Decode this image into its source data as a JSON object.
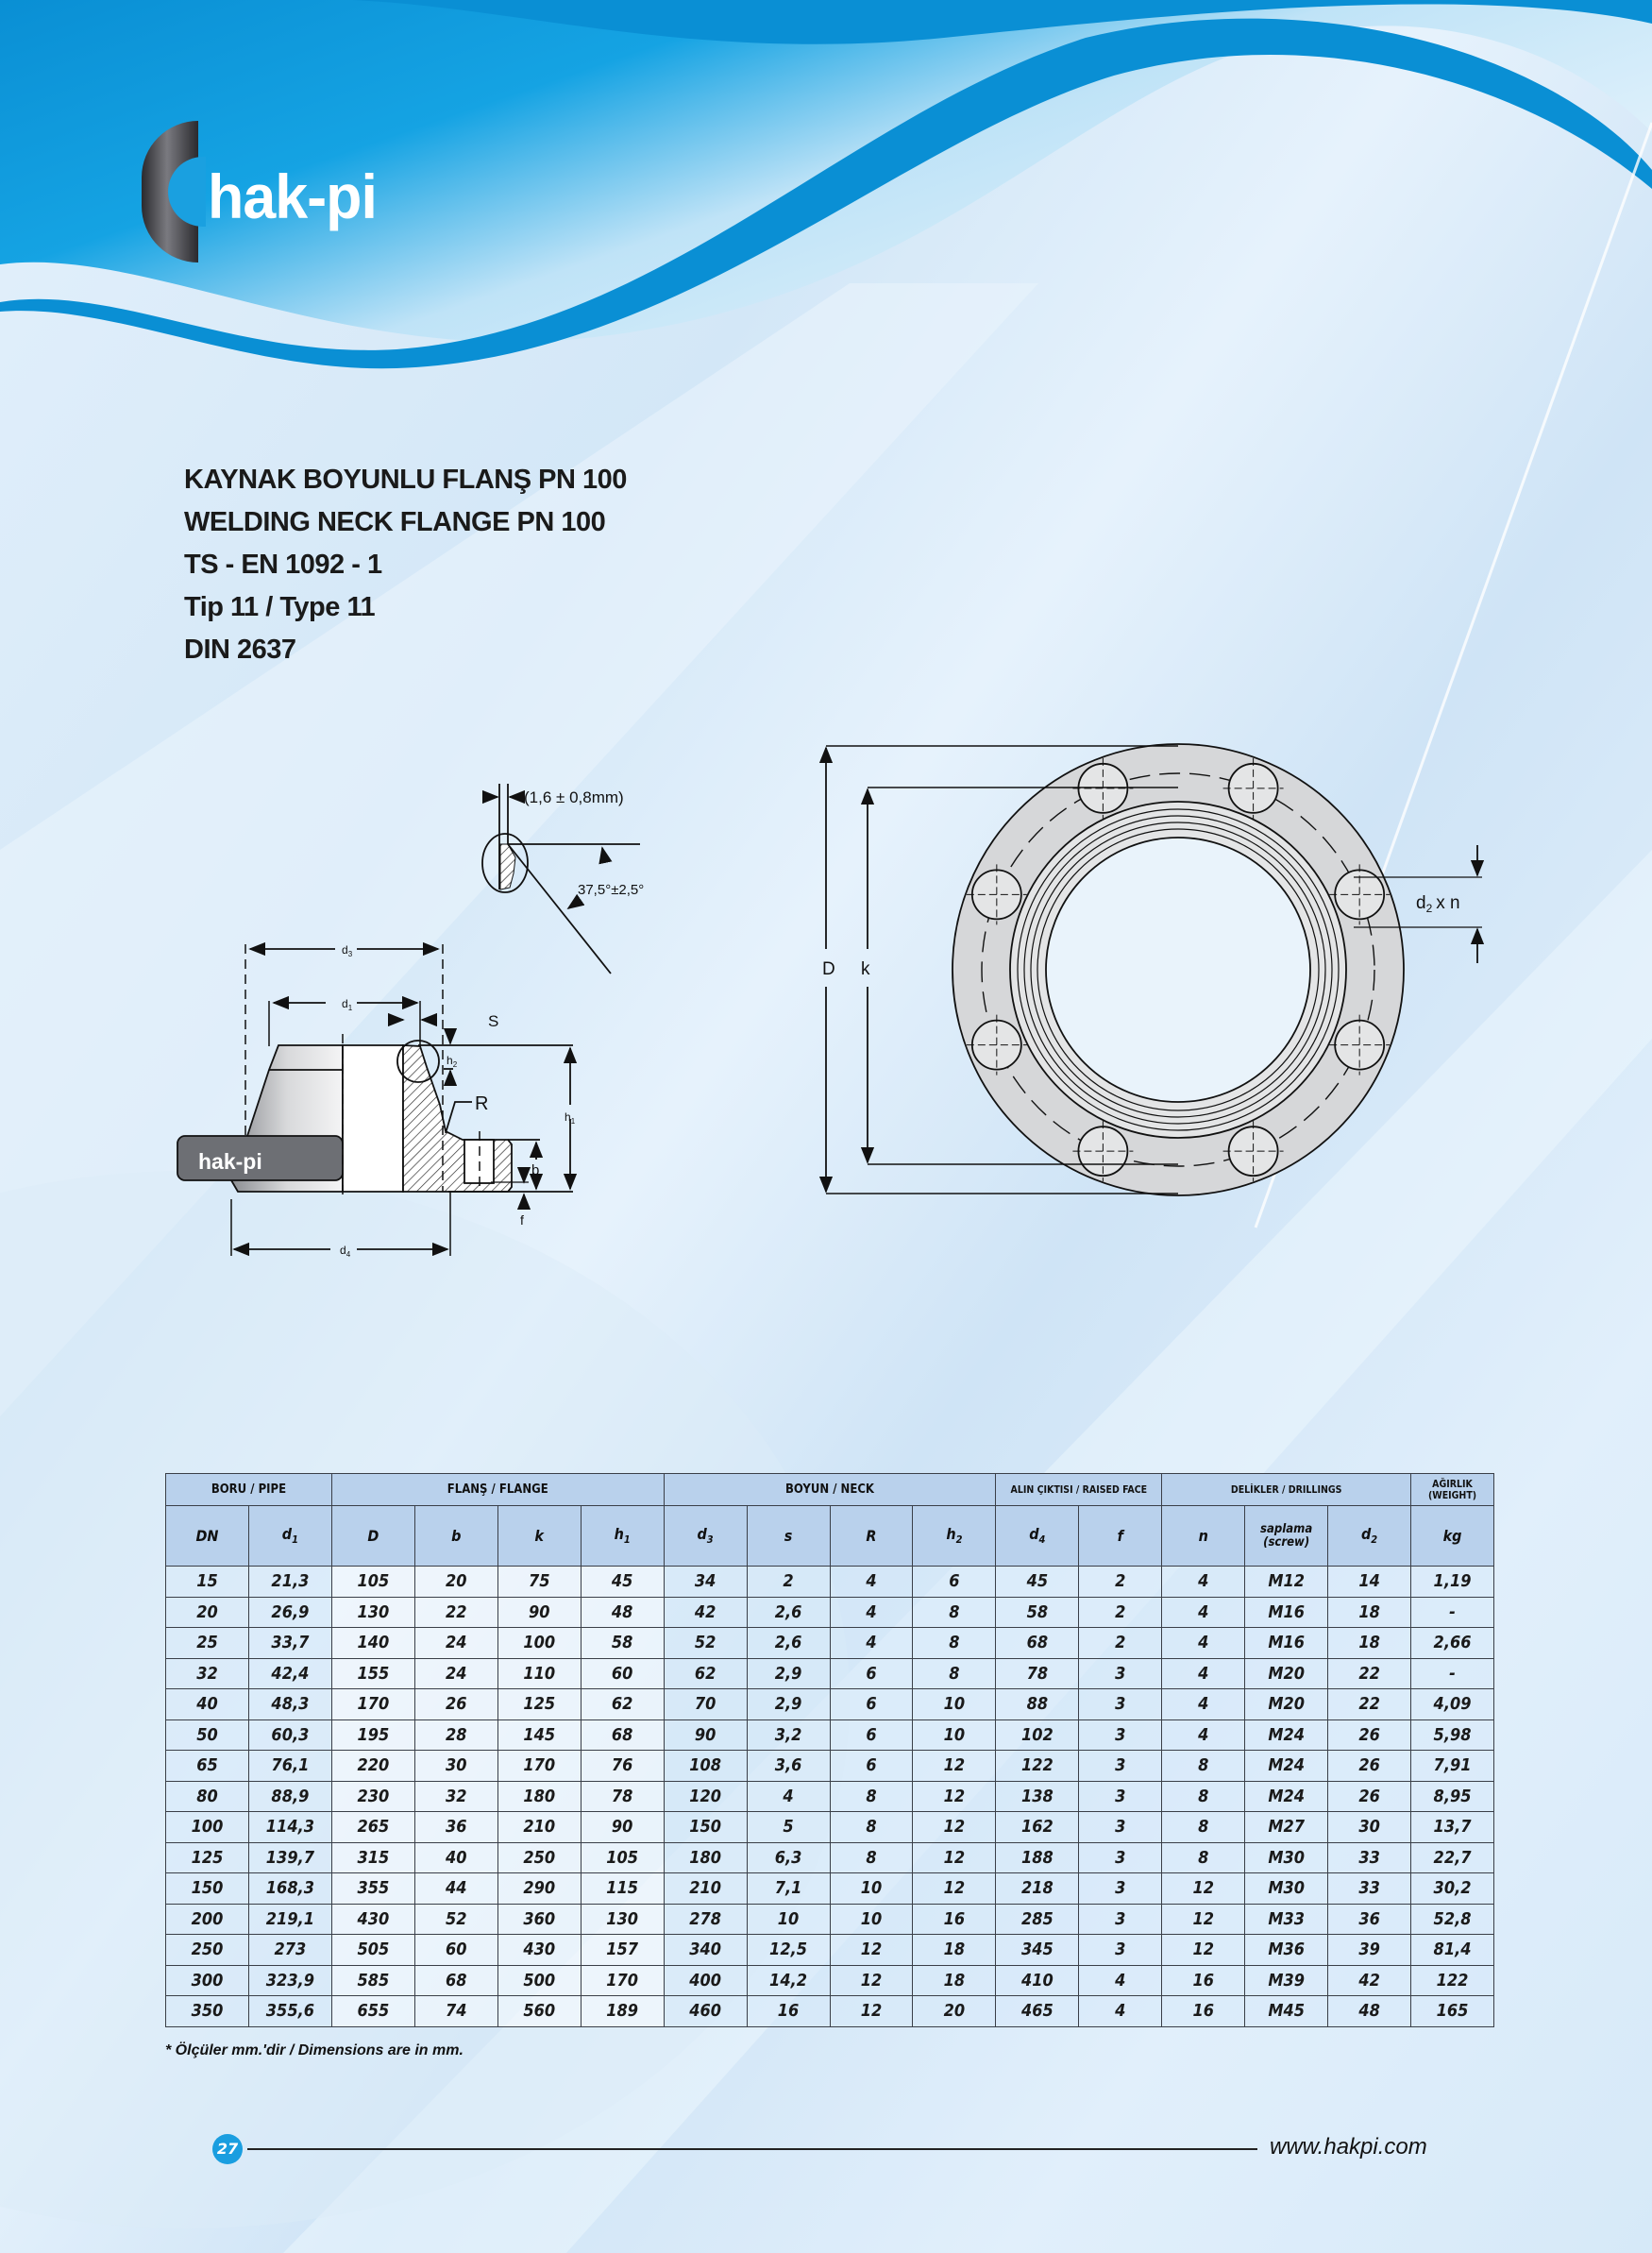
{
  "brand": {
    "logo_text": "hak-pi",
    "primary_color": "#0a93d6"
  },
  "titles": [
    "KAYNAK BOYUNLU FLANŞ PN 100",
    "WELDING NECK FLANGE PN 100",
    "TS - EN 1092 - 1",
    "Tip 11 / Type 11",
    "DIN 2637"
  ],
  "drawing": {
    "gap_label": "(1,6 ± 0,8mm)",
    "angle_label": "37,5°±2,5°",
    "D": "D",
    "k": "k",
    "d2n": {
      "d": "d",
      "sub": "2",
      "rest": "x n"
    },
    "d3": {
      "d": "d",
      "sub": "3"
    },
    "d1": {
      "d": "d",
      "sub": "1"
    },
    "d4": {
      "d": "d",
      "sub": "4"
    },
    "h1": {
      "d": "h",
      "sub": "1"
    },
    "h2": {
      "d": "h",
      "sub": "2"
    },
    "S": "S",
    "R": "R",
    "b": "b",
    "f": "f",
    "part_logo": "hak-pi"
  },
  "table": {
    "groups": [
      {
        "label": "BORU / PIPE",
        "span": 2
      },
      {
        "label": "FLANŞ / FLANGE",
        "span": 4
      },
      {
        "label": "BOYUN / NECK",
        "span": 4
      },
      {
        "label": "ALIN ÇIKTISI / RAISED FACE",
        "span": 2,
        "small": true
      },
      {
        "label": "DELİKLER / DRILLINGS",
        "span": 3,
        "small": true
      },
      {
        "label": "AĞIRLIK (WEIGHT)",
        "span": 1,
        "small": true
      }
    ],
    "columns": [
      {
        "label": "DN"
      },
      {
        "label": "d",
        "sub": "1"
      },
      {
        "label": "D"
      },
      {
        "label": "b"
      },
      {
        "label": "k"
      },
      {
        "label": "h",
        "sub": "1"
      },
      {
        "label": "d",
        "sub": "3"
      },
      {
        "label": "s"
      },
      {
        "label": "R"
      },
      {
        "label": "h",
        "sub": "2"
      },
      {
        "label": "d",
        "sub": "4"
      },
      {
        "label": "f"
      },
      {
        "label": "n"
      },
      {
        "label": "saplama (screw)"
      },
      {
        "label": "d",
        "sub": "2"
      },
      {
        "label": "kg"
      }
    ],
    "rows": [
      [
        "15",
        "21,3",
        "105",
        "20",
        "75",
        "45",
        "34",
        "2",
        "4",
        "6",
        "45",
        "2",
        "4",
        "M12",
        "14",
        "1,19"
      ],
      [
        "20",
        "26,9",
        "130",
        "22",
        "90",
        "48",
        "42",
        "2,6",
        "4",
        "8",
        "58",
        "2",
        "4",
        "M16",
        "18",
        "-"
      ],
      [
        "25",
        "33,7",
        "140",
        "24",
        "100",
        "58",
        "52",
        "2,6",
        "4",
        "8",
        "68",
        "2",
        "4",
        "M16",
        "18",
        "2,66"
      ],
      [
        "32",
        "42,4",
        "155",
        "24",
        "110",
        "60",
        "62",
        "2,9",
        "6",
        "8",
        "78",
        "3",
        "4",
        "M20",
        "22",
        "-"
      ],
      [
        "40",
        "48,3",
        "170",
        "26",
        "125",
        "62",
        "70",
        "2,9",
        "6",
        "10",
        "88",
        "3",
        "4",
        "M20",
        "22",
        "4,09"
      ],
      [
        "50",
        "60,3",
        "195",
        "28",
        "145",
        "68",
        "90",
        "3,2",
        "6",
        "10",
        "102",
        "3",
        "4",
        "M24",
        "26",
        "5,98"
      ],
      [
        "65",
        "76,1",
        "220",
        "30",
        "170",
        "76",
        "108",
        "3,6",
        "6",
        "12",
        "122",
        "3",
        "8",
        "M24",
        "26",
        "7,91"
      ],
      [
        "80",
        "88,9",
        "230",
        "32",
        "180",
        "78",
        "120",
        "4",
        "8",
        "12",
        "138",
        "3",
        "8",
        "M24",
        "26",
        "8,95"
      ],
      [
        "100",
        "114,3",
        "265",
        "36",
        "210",
        "90",
        "150",
        "5",
        "8",
        "12",
        "162",
        "3",
        "8",
        "M27",
        "30",
        "13,7"
      ],
      [
        "125",
        "139,7",
        "315",
        "40",
        "250",
        "105",
        "180",
        "6,3",
        "8",
        "12",
        "188",
        "3",
        "8",
        "M30",
        "33",
        "22,7"
      ],
      [
        "150",
        "168,3",
        "355",
        "44",
        "290",
        "115",
        "210",
        "7,1",
        "10",
        "12",
        "218",
        "3",
        "12",
        "M30",
        "33",
        "30,2"
      ],
      [
        "200",
        "219,1",
        "430",
        "52",
        "360",
        "130",
        "278",
        "10",
        "10",
        "16",
        "285",
        "3",
        "12",
        "M33",
        "36",
        "52,8"
      ],
      [
        "250",
        "273",
        "505",
        "60",
        "430",
        "157",
        "340",
        "12,5",
        "12",
        "18",
        "345",
        "3",
        "12",
        "M36",
        "39",
        "81,4"
      ],
      [
        "300",
        "323,9",
        "585",
        "68",
        "500",
        "170",
        "400",
        "14,2",
        "12",
        "18",
        "410",
        "4",
        "16",
        "M39",
        "42",
        "122"
      ],
      [
        "350",
        "355,6",
        "655",
        "74",
        "560",
        "189",
        "460",
        "16",
        "12",
        "20",
        "465",
        "4",
        "16",
        "M45",
        "48",
        "165"
      ]
    ],
    "footnote": "* Ölçüler mm.'dir / Dimensions are in mm."
  },
  "footer": {
    "page_number": "27",
    "url": "www.hakpi.com"
  }
}
